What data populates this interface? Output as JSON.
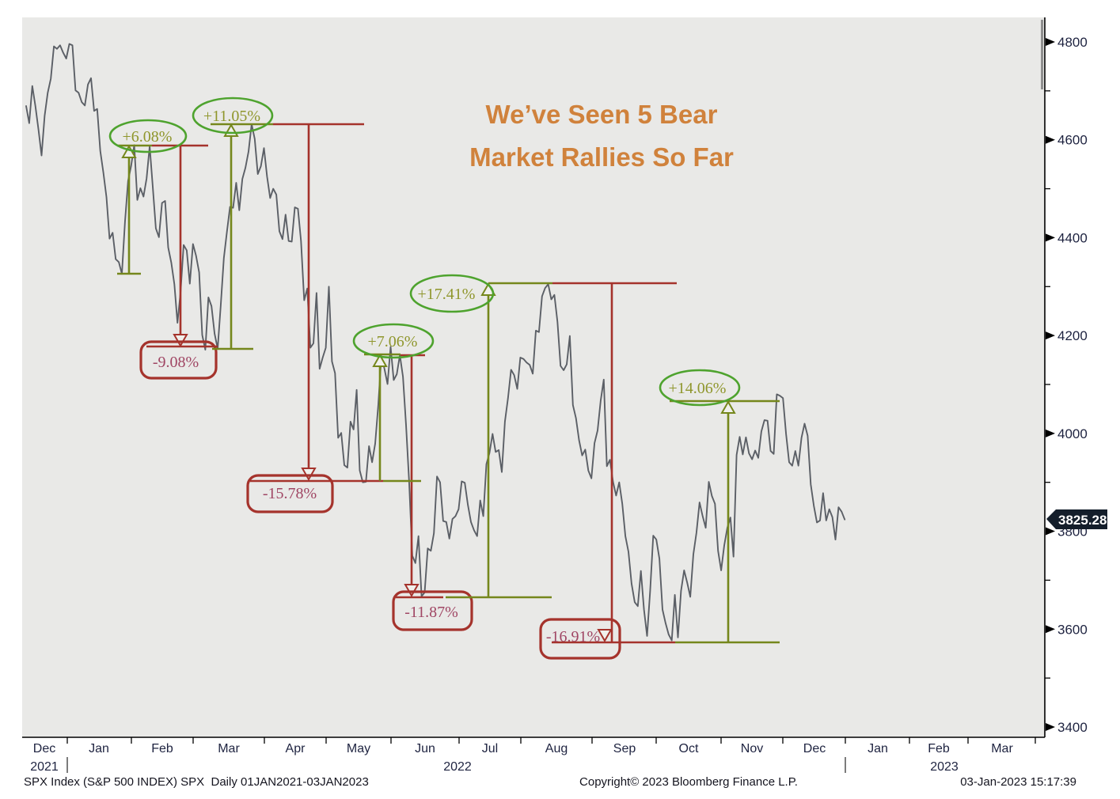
{
  "title": {
    "line1": "We’ve Seen 5 Bear",
    "line2": "Market Rallies So Far"
  },
  "chart_data": {
    "type": "line",
    "title": "We’ve Seen 5 Bear Market Rallies So Far",
    "instrument": "SPX Index (S&P 500 INDEX)",
    "frequency": "Daily",
    "x_axis": {
      "start": "13-Dec-2021",
      "end": "03-Jan-2023",
      "unit": "trading days",
      "month_labels": [
        "Dec",
        "Jan",
        "Feb",
        "Mar",
        "Apr",
        "May",
        "Jun",
        "Jul",
        "Aug",
        "Sep",
        "Oct",
        "Nov",
        "Dec",
        "Jan",
        "Feb",
        "Mar"
      ],
      "year_labels": [
        "2021",
        "2022",
        "2023"
      ]
    },
    "y_axis": {
      "ticks": [
        4800,
        4600,
        4400,
        4200,
        4000,
        3800,
        3600,
        3400
      ],
      "minor_ticks": [
        4700,
        4500,
        4300,
        4100,
        3900,
        3700,
        3500
      ],
      "visible_range": [
        3378,
        4850
      ]
    },
    "last_price_label": "3825.28",
    "series": [
      {
        "name": "SPX Index",
        "closes": [
          4669,
          4634,
          4710,
          4669,
          4621,
          4568,
          4649,
          4696,
          4725,
          4791,
          4786,
          4793,
          4778,
          4766,
          4796,
          4793,
          4701,
          4696,
          4677,
          4670,
          4713,
          4726,
          4659,
          4663,
          4577,
          4533,
          4483,
          4398,
          4410,
          4356,
          4350,
          4326,
          4432,
          4516,
          4547,
          4589,
          4477,
          4501,
          4484,
          4521,
          4587,
          4504,
          4419,
          4401,
          4471,
          4475,
          4380,
          4349,
          4305,
          4226,
          4288,
          4385,
          4374,
          4306,
          4387,
          4363,
          4329,
          4201,
          4171,
          4278,
          4260,
          4204,
          4173,
          4262,
          4358,
          4412,
          4463,
          4461,
          4512,
          4456,
          4520,
          4543,
          4576,
          4632,
          4602,
          4530,
          4546,
          4583,
          4525,
          4481,
          4500,
          4488,
          4413,
          4397,
          4447,
          4393,
          4392,
          4462,
          4459,
          4393,
          4272,
          4296,
          4175,
          4184,
          4287,
          4132,
          4155,
          4175,
          4300,
          4147,
          4123,
          3991,
          4001,
          3935,
          3930,
          4024,
          4008,
          4089,
          3924,
          3900,
          3901,
          3974,
          3941,
          3979,
          4058,
          4158,
          4132,
          4101,
          4177,
          4109,
          4121,
          4160,
          4116,
          4017,
          3901,
          3750,
          3735,
          3790,
          3667,
          3675,
          3765,
          3760,
          3796,
          3912,
          3900,
          3821,
          3819,
          3785,
          3825,
          3831,
          3845,
          3902,
          3899,
          3854,
          3819,
          3802,
          3790,
          3863,
          3831,
          3937,
          3960,
          3999,
          3962,
          3966,
          3921,
          4024,
          4072,
          4130,
          4119,
          4091,
          4155,
          4152,
          4145,
          4140,
          4122,
          4210,
          4207,
          4280,
          4297,
          4305,
          4274,
          4283,
          4228,
          4138,
          4129,
          4141,
          4199,
          4058,
          4031,
          3986,
          3955,
          3967,
          3924,
          3908,
          3980,
          4006,
          4067,
          4110,
          3933,
          3946,
          3901,
          3873,
          3900,
          3856,
          3790,
          3758,
          3693,
          3655,
          3647,
          3719,
          3640,
          3586,
          3678,
          3791,
          3783,
          3744,
          3640,
          3612,
          3589,
          3577,
          3670,
          3583,
          3678,
          3720,
          3695,
          3666,
          3753,
          3797,
          3859,
          3831,
          3807,
          3901,
          3872,
          3856,
          3760,
          3720,
          3771,
          3807,
          3828,
          3748,
          3956,
          3993,
          3957,
          3992,
          3959,
          3947,
          3965,
          3950,
          4004,
          4027,
          4026,
          3964,
          3958,
          4080,
          4077,
          4072,
          3999,
          3941,
          3934,
          3964,
          3934,
          3991,
          4020,
          3995,
          3896,
          3852,
          3818,
          3822,
          3878,
          3822,
          3845,
          3829,
          3783,
          3849,
          3840,
          3824
        ]
      }
    ],
    "annotations": {
      "rallies": [
        {
          "label": "+6.08%"
        },
        {
          "label": "+11.05%"
        },
        {
          "label": "+7.06%"
        },
        {
          "label": "+17.41%"
        },
        {
          "label": "+14.06%"
        }
      ],
      "declines": [
        {
          "label": "-9.08%"
        },
        {
          "label": "-15.78%"
        },
        {
          "label": "-11.87%"
        },
        {
          "label": "-16.91%"
        }
      ]
    }
  },
  "footer": {
    "left": "SPX Index (S&P 500 INDEX) SPX  Daily 01JAN2021-03JAN2023",
    "center": "Copyright© 2023 Bloomberg Finance L.P.",
    "right": "03-Jan-2023 15:17:39"
  },
  "colors": {
    "plot_bg": "#e9e9e7",
    "spx_line": "#5b5f66",
    "olive_line": "#75871c",
    "rally_ellipse_green": "#4ea32e",
    "rally_text": "#8f962c",
    "decline_red": "#a5332c",
    "decline_text": "#a04664",
    "axis_text": "#1e2340",
    "title_orange": "#d0823c",
    "badge_bg": "#141e2b",
    "badge_text": "#ffffff"
  }
}
